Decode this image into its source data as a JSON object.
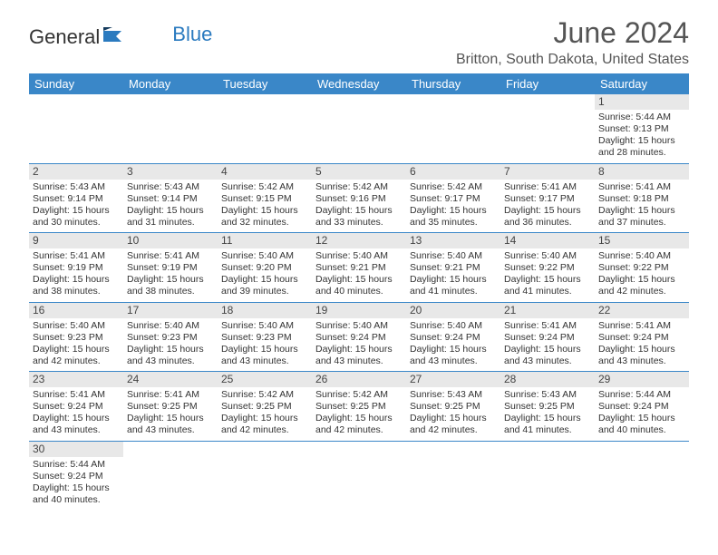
{
  "logo": {
    "general": "General",
    "blue": "Blue"
  },
  "title": "June 2024",
  "subtitle": "Britton, South Dakota, United States",
  "colors": {
    "header_bg": "#3a87c8",
    "header_text": "#ffffff",
    "daynum_bg": "#e8e8e8",
    "divider": "#3a87c8",
    "text": "#333333",
    "title_text": "#555555",
    "logo_blue": "#2a7abf"
  },
  "day_headers": [
    "Sunday",
    "Monday",
    "Tuesday",
    "Wednesday",
    "Thursday",
    "Friday",
    "Saturday"
  ],
  "weeks": [
    [
      null,
      null,
      null,
      null,
      null,
      null,
      {
        "d": "1",
        "sr": "Sunrise: 5:44 AM",
        "ss": "Sunset: 9:13 PM",
        "dl1": "Daylight: 15 hours",
        "dl2": "and 28 minutes."
      }
    ],
    [
      {
        "d": "2",
        "sr": "Sunrise: 5:43 AM",
        "ss": "Sunset: 9:14 PM",
        "dl1": "Daylight: 15 hours",
        "dl2": "and 30 minutes."
      },
      {
        "d": "3",
        "sr": "Sunrise: 5:43 AM",
        "ss": "Sunset: 9:14 PM",
        "dl1": "Daylight: 15 hours",
        "dl2": "and 31 minutes."
      },
      {
        "d": "4",
        "sr": "Sunrise: 5:42 AM",
        "ss": "Sunset: 9:15 PM",
        "dl1": "Daylight: 15 hours",
        "dl2": "and 32 minutes."
      },
      {
        "d": "5",
        "sr": "Sunrise: 5:42 AM",
        "ss": "Sunset: 9:16 PM",
        "dl1": "Daylight: 15 hours",
        "dl2": "and 33 minutes."
      },
      {
        "d": "6",
        "sr": "Sunrise: 5:42 AM",
        "ss": "Sunset: 9:17 PM",
        "dl1": "Daylight: 15 hours",
        "dl2": "and 35 minutes."
      },
      {
        "d": "7",
        "sr": "Sunrise: 5:41 AM",
        "ss": "Sunset: 9:17 PM",
        "dl1": "Daylight: 15 hours",
        "dl2": "and 36 minutes."
      },
      {
        "d": "8",
        "sr": "Sunrise: 5:41 AM",
        "ss": "Sunset: 9:18 PM",
        "dl1": "Daylight: 15 hours",
        "dl2": "and 37 minutes."
      }
    ],
    [
      {
        "d": "9",
        "sr": "Sunrise: 5:41 AM",
        "ss": "Sunset: 9:19 PM",
        "dl1": "Daylight: 15 hours",
        "dl2": "and 38 minutes."
      },
      {
        "d": "10",
        "sr": "Sunrise: 5:41 AM",
        "ss": "Sunset: 9:19 PM",
        "dl1": "Daylight: 15 hours",
        "dl2": "and 38 minutes."
      },
      {
        "d": "11",
        "sr": "Sunrise: 5:40 AM",
        "ss": "Sunset: 9:20 PM",
        "dl1": "Daylight: 15 hours",
        "dl2": "and 39 minutes."
      },
      {
        "d": "12",
        "sr": "Sunrise: 5:40 AM",
        "ss": "Sunset: 9:21 PM",
        "dl1": "Daylight: 15 hours",
        "dl2": "and 40 minutes."
      },
      {
        "d": "13",
        "sr": "Sunrise: 5:40 AM",
        "ss": "Sunset: 9:21 PM",
        "dl1": "Daylight: 15 hours",
        "dl2": "and 41 minutes."
      },
      {
        "d": "14",
        "sr": "Sunrise: 5:40 AM",
        "ss": "Sunset: 9:22 PM",
        "dl1": "Daylight: 15 hours",
        "dl2": "and 41 minutes."
      },
      {
        "d": "15",
        "sr": "Sunrise: 5:40 AM",
        "ss": "Sunset: 9:22 PM",
        "dl1": "Daylight: 15 hours",
        "dl2": "and 42 minutes."
      }
    ],
    [
      {
        "d": "16",
        "sr": "Sunrise: 5:40 AM",
        "ss": "Sunset: 9:23 PM",
        "dl1": "Daylight: 15 hours",
        "dl2": "and 42 minutes."
      },
      {
        "d": "17",
        "sr": "Sunrise: 5:40 AM",
        "ss": "Sunset: 9:23 PM",
        "dl1": "Daylight: 15 hours",
        "dl2": "and 43 minutes."
      },
      {
        "d": "18",
        "sr": "Sunrise: 5:40 AM",
        "ss": "Sunset: 9:23 PM",
        "dl1": "Daylight: 15 hours",
        "dl2": "and 43 minutes."
      },
      {
        "d": "19",
        "sr": "Sunrise: 5:40 AM",
        "ss": "Sunset: 9:24 PM",
        "dl1": "Daylight: 15 hours",
        "dl2": "and 43 minutes."
      },
      {
        "d": "20",
        "sr": "Sunrise: 5:40 AM",
        "ss": "Sunset: 9:24 PM",
        "dl1": "Daylight: 15 hours",
        "dl2": "and 43 minutes."
      },
      {
        "d": "21",
        "sr": "Sunrise: 5:41 AM",
        "ss": "Sunset: 9:24 PM",
        "dl1": "Daylight: 15 hours",
        "dl2": "and 43 minutes."
      },
      {
        "d": "22",
        "sr": "Sunrise: 5:41 AM",
        "ss": "Sunset: 9:24 PM",
        "dl1": "Daylight: 15 hours",
        "dl2": "and 43 minutes."
      }
    ],
    [
      {
        "d": "23",
        "sr": "Sunrise: 5:41 AM",
        "ss": "Sunset: 9:24 PM",
        "dl1": "Daylight: 15 hours",
        "dl2": "and 43 minutes."
      },
      {
        "d": "24",
        "sr": "Sunrise: 5:41 AM",
        "ss": "Sunset: 9:25 PM",
        "dl1": "Daylight: 15 hours",
        "dl2": "and 43 minutes."
      },
      {
        "d": "25",
        "sr": "Sunrise: 5:42 AM",
        "ss": "Sunset: 9:25 PM",
        "dl1": "Daylight: 15 hours",
        "dl2": "and 42 minutes."
      },
      {
        "d": "26",
        "sr": "Sunrise: 5:42 AM",
        "ss": "Sunset: 9:25 PM",
        "dl1": "Daylight: 15 hours",
        "dl2": "and 42 minutes."
      },
      {
        "d": "27",
        "sr": "Sunrise: 5:43 AM",
        "ss": "Sunset: 9:25 PM",
        "dl1": "Daylight: 15 hours",
        "dl2": "and 42 minutes."
      },
      {
        "d": "28",
        "sr": "Sunrise: 5:43 AM",
        "ss": "Sunset: 9:25 PM",
        "dl1": "Daylight: 15 hours",
        "dl2": "and 41 minutes."
      },
      {
        "d": "29",
        "sr": "Sunrise: 5:44 AM",
        "ss": "Sunset: 9:24 PM",
        "dl1": "Daylight: 15 hours",
        "dl2": "and 40 minutes."
      }
    ],
    [
      {
        "d": "30",
        "sr": "Sunrise: 5:44 AM",
        "ss": "Sunset: 9:24 PM",
        "dl1": "Daylight: 15 hours",
        "dl2": "and 40 minutes."
      },
      null,
      null,
      null,
      null,
      null,
      null
    ]
  ]
}
